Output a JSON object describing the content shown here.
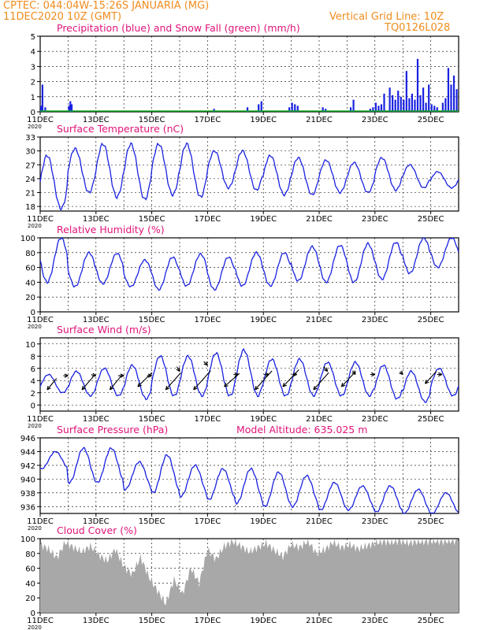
{
  "header": {
    "line1": "CPTEC:   044:04W-15:26S   JANUARIA (MG)",
    "line2": "11DEC2020 10Z (GMT)",
    "grid_note": "Vertical Grid Line: 10Z",
    "model_code": "TQ0126L028"
  },
  "colors": {
    "header": "#f08c1e",
    "title": "#e0147a",
    "series": "#1a22e0",
    "snow": "#10b020",
    "cloud": "#a8a8a8",
    "axis": "#000000"
  },
  "x_axis": {
    "ticks": [
      "11DEC",
      "13DEC",
      "15DEC",
      "17DEC",
      "19DEC",
      "21DEC",
      "23DEC",
      "25DEC"
    ],
    "tick_day_offsets": [
      0,
      2,
      4,
      6,
      8,
      10,
      12,
      14
    ],
    "range_days": [
      0,
      15
    ],
    "year_label": "2020"
  },
  "chart_data": [
    {
      "type": "bar",
      "title": "Precipitation (blue) and Snow Fall (green) (mm/h)",
      "ylim": [
        0,
        5
      ],
      "yticks": [
        0,
        1,
        2,
        3,
        4,
        5
      ],
      "series": [
        {
          "name": "Precipitation",
          "x": [
            0.0,
            0.05,
            0.15,
            1.0,
            1.05,
            1.1,
            6.2,
            7.4,
            7.8,
            7.9,
            8.9,
            9.0,
            9.1,
            9.2,
            10.1,
            10.2,
            11.1,
            11.2,
            11.8,
            11.9,
            12.0,
            12.1,
            12.2,
            12.3,
            12.5,
            12.6,
            12.7,
            12.8,
            12.9,
            13.0,
            13.1,
            13.2,
            13.3,
            13.4,
            13.5,
            13.6,
            13.7,
            13.8,
            13.9,
            14.0,
            14.1,
            14.2,
            14.4,
            14.5,
            14.6,
            14.7,
            14.8,
            14.9
          ],
          "values": [
            0.4,
            1.8,
            0.3,
            0.4,
            0.7,
            0.5,
            0.2,
            0.3,
            0.5,
            0.7,
            0.3,
            0.6,
            0.5,
            0.4,
            0.3,
            0.2,
            0.3,
            0.8,
            0.2,
            0.3,
            0.6,
            0.4,
            0.5,
            1.2,
            1.6,
            1.1,
            0.8,
            1.4,
            1.0,
            0.8,
            2.7,
            0.9,
            1.2,
            0.8,
            3.5,
            1.1,
            1.6,
            0.6,
            1.8,
            0.5,
            0.4,
            0.3,
            0.6,
            0.9,
            2.9,
            1.8,
            2.4,
            1.5
          ]
        },
        {
          "name": "Snow Fall",
          "x": [],
          "values": []
        }
      ]
    },
    {
      "type": "line",
      "title": "Surface Temperature (nC)",
      "ylim": [
        17,
        33
      ],
      "yticks": [
        18,
        21,
        24,
        27,
        30,
        33
      ],
      "daily_max": [
        29,
        30.5,
        31.5,
        31.5,
        31.5,
        31.5,
        30,
        30,
        29,
        28.5,
        28,
        27.5,
        28.5,
        27,
        25.5
      ],
      "daily_min": [
        17.5,
        21,
        20,
        19.5,
        20.5,
        20,
        22,
        21.5,
        20.5,
        20.5,
        21,
        21,
        21.5,
        22,
        22
      ],
      "x": [],
      "values": []
    },
    {
      "type": "line",
      "title": "Relative Humidity (%)",
      "ylim": [
        0,
        100
      ],
      "yticks": [
        0,
        20,
        40,
        60,
        80,
        100
      ],
      "daily_max": [
        100,
        80,
        79,
        70,
        74,
        78,
        74,
        80,
        80,
        88,
        90,
        92,
        94,
        100,
        100
      ],
      "daily_min": [
        40,
        34,
        38,
        34,
        30,
        35,
        30,
        35,
        35,
        42,
        40,
        40,
        44,
        52,
        60
      ],
      "x": [],
      "values": []
    },
    {
      "type": "line",
      "title": "Surface Wind (m/s)",
      "ylim": [
        -1,
        11
      ],
      "yticks": [
        0,
        2,
        4,
        6,
        8,
        10
      ],
      "daily_max": [
        5,
        5.5,
        6,
        6.5,
        8,
        8,
        8.5,
        9,
        7.5,
        7.5,
        7,
        7,
        6.5,
        5.5,
        6
      ],
      "daily_min": [
        2,
        1.5,
        1.5,
        1,
        1.5,
        1.5,
        1.5,
        1.5,
        1.5,
        1.5,
        1.5,
        1.5,
        1,
        0.5,
        1.5
      ],
      "x": [],
      "values": [],
      "arrows": [
        {
          "x": 0.25,
          "y": 2.5,
          "u": 1.0,
          "v": 1.2
        },
        {
          "x": 1.0,
          "y": 4.8,
          "u": -0.5,
          "v": 0
        },
        {
          "x": 1.5,
          "y": 2.5,
          "u": 1.2,
          "v": 1.4
        },
        {
          "x": 2.0,
          "y": 4.8,
          "u": -0.5,
          "v": 0.1
        },
        {
          "x": 2.5,
          "y": 2.5,
          "u": 1.3,
          "v": 1.6
        },
        {
          "x": 3.0,
          "y": 4.8,
          "u": -0.6,
          "v": 0
        },
        {
          "x": 3.5,
          "y": 3.0,
          "u": 1.5,
          "v": 1.5
        },
        {
          "x": 4.0,
          "y": 4.8,
          "u": -0.5,
          "v": 0
        },
        {
          "x": 4.5,
          "y": 2.5,
          "u": 1.6,
          "v": 1.8
        },
        {
          "x": 5.0,
          "y": 5.5,
          "u": -0.3,
          "v": 0.5
        },
        {
          "x": 5.5,
          "y": 2.5,
          "u": 1.8,
          "v": 2.0
        },
        {
          "x": 6.0,
          "y": 6.5,
          "u": -0.4,
          "v": 0.4
        },
        {
          "x": 6.6,
          "y": 3.0,
          "u": 1.6,
          "v": 1.4
        },
        {
          "x": 7.1,
          "y": 5.0,
          "u": -0.5,
          "v": 0
        },
        {
          "x": 7.7,
          "y": 2.5,
          "u": 1.8,
          "v": 2.0
        },
        {
          "x": 8.2,
          "y": 5.0,
          "u": -0.5,
          "v": 0
        },
        {
          "x": 8.7,
          "y": 3.0,
          "u": 1.7,
          "v": 1.8
        },
        {
          "x": 9.2,
          "y": 5.0,
          "u": -0.5,
          "v": 0
        },
        {
          "x": 9.8,
          "y": 2.5,
          "u": 1.6,
          "v": 1.8
        },
        {
          "x": 10.3,
          "y": 5.5,
          "u": -0.4,
          "v": 0.5
        },
        {
          "x": 10.8,
          "y": 3.0,
          "u": 1.5,
          "v": 1.6
        },
        {
          "x": 11.3,
          "y": 5.0,
          "u": -0.3,
          "v": 0.4
        },
        {
          "x": 12.0,
          "y": 5.0,
          "u": -0.5,
          "v": 0
        },
        {
          "x": 13.0,
          "y": 5.0,
          "u": -0.3,
          "v": 0.3
        },
        {
          "x": 13.8,
          "y": 3.5,
          "u": 1.2,
          "v": 1.3
        },
        {
          "x": 14.4,
          "y": 5.0,
          "u": -0.5,
          "v": 0
        }
      ]
    },
    {
      "type": "line",
      "title": "Surface Pressure (hPa)",
      "subtitle": "Model Altitude: 635.025 m",
      "ylim": [
        935,
        946
      ],
      "yticks": [
        936,
        938,
        940,
        942,
        944,
        946
      ],
      "daily_max": [
        944.0,
        944.5,
        944.5,
        942.5,
        943.5,
        942.0,
        941.5,
        941.5,
        941.0,
        940.5,
        939.5,
        939.0,
        939.0,
        938.5,
        938.0
      ],
      "daily_min": [
        941.5,
        939.5,
        939.5,
        938.5,
        938.0,
        937.5,
        937.0,
        936.5,
        936.0,
        936.0,
        935.5,
        935.5,
        935.2,
        935.0,
        935.0
      ],
      "x": [],
      "values": []
    },
    {
      "type": "area",
      "title": "Cloud Cover (%)",
      "ylim": [
        0,
        100
      ],
      "yticks": [
        0,
        20,
        40,
        60,
        80,
        100
      ],
      "x": [
        0.0,
        0.3,
        0.6,
        0.9,
        1.2,
        1.5,
        1.8,
        2.1,
        2.4,
        2.7,
        3.0,
        3.3,
        3.6,
        3.9,
        4.2,
        4.5,
        4.8,
        5.1,
        5.4,
        5.7,
        6.0,
        6.3,
        6.6,
        6.9,
        7.2,
        7.5,
        7.8,
        8.1,
        8.4,
        8.7,
        9.0,
        9.3,
        9.6,
        9.9,
        10.2,
        10.5,
        10.8,
        11.1,
        11.4,
        11.7,
        12.0,
        12.3,
        12.6,
        12.9,
        13.2,
        13.5,
        13.8,
        14.1,
        14.4,
        14.7,
        15.0
      ],
      "values": [
        92,
        86,
        74,
        95,
        88,
        82,
        90,
        78,
        70,
        86,
        62,
        52,
        75,
        48,
        30,
        12,
        45,
        25,
        60,
        40,
        85,
        72,
        90,
        96,
        90,
        82,
        88,
        94,
        84,
        76,
        92,
        88,
        97,
        80,
        85,
        95,
        88,
        92,
        86,
        90,
        94,
        96,
        95,
        97,
        94,
        96,
        96,
        97,
        96,
        97,
        97
      ]
    }
  ]
}
